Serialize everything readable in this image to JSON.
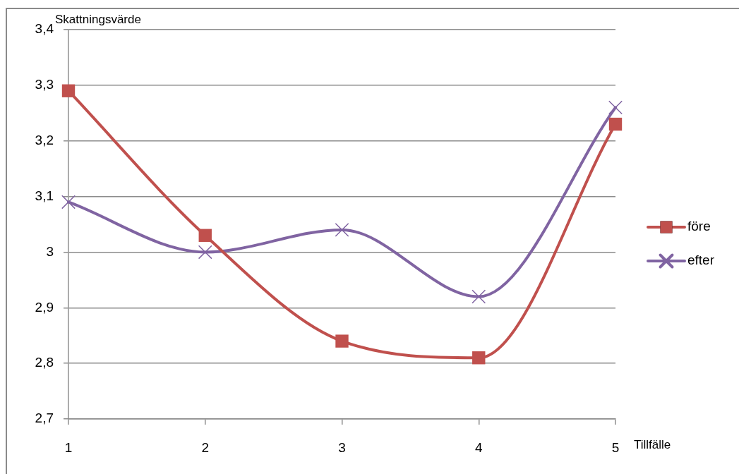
{
  "chart_data": {
    "type": "line",
    "xlabel": "Tillfälle",
    "ylabel": "Skattningsvärde",
    "categories": [
      "1",
      "2",
      "3",
      "4",
      "5"
    ],
    "series": [
      {
        "name": "före",
        "color": "#c0504d",
        "marker": "square",
        "values": [
          3.29,
          3.03,
          2.84,
          2.81,
          3.23
        ]
      },
      {
        "name": "efter",
        "color": "#8064a2",
        "marker": "cross",
        "values": [
          3.09,
          3.0,
          3.04,
          2.92,
          3.26
        ]
      }
    ],
    "ylim": [
      2.7,
      3.4
    ],
    "yticks": [
      {
        "value": 2.7,
        "label": "2,7"
      },
      {
        "value": 2.8,
        "label": "2,8"
      },
      {
        "value": 2.9,
        "label": "2,9"
      },
      3,
      {
        "value": 3.1,
        "label": "3,1"
      },
      {
        "value": 3.2,
        "label": "3,2"
      },
      {
        "value": 3.3,
        "label": "3,3"
      },
      {
        "value": 3.4,
        "label": "3,4"
      }
    ],
    "grid": "y",
    "legend": "right"
  }
}
